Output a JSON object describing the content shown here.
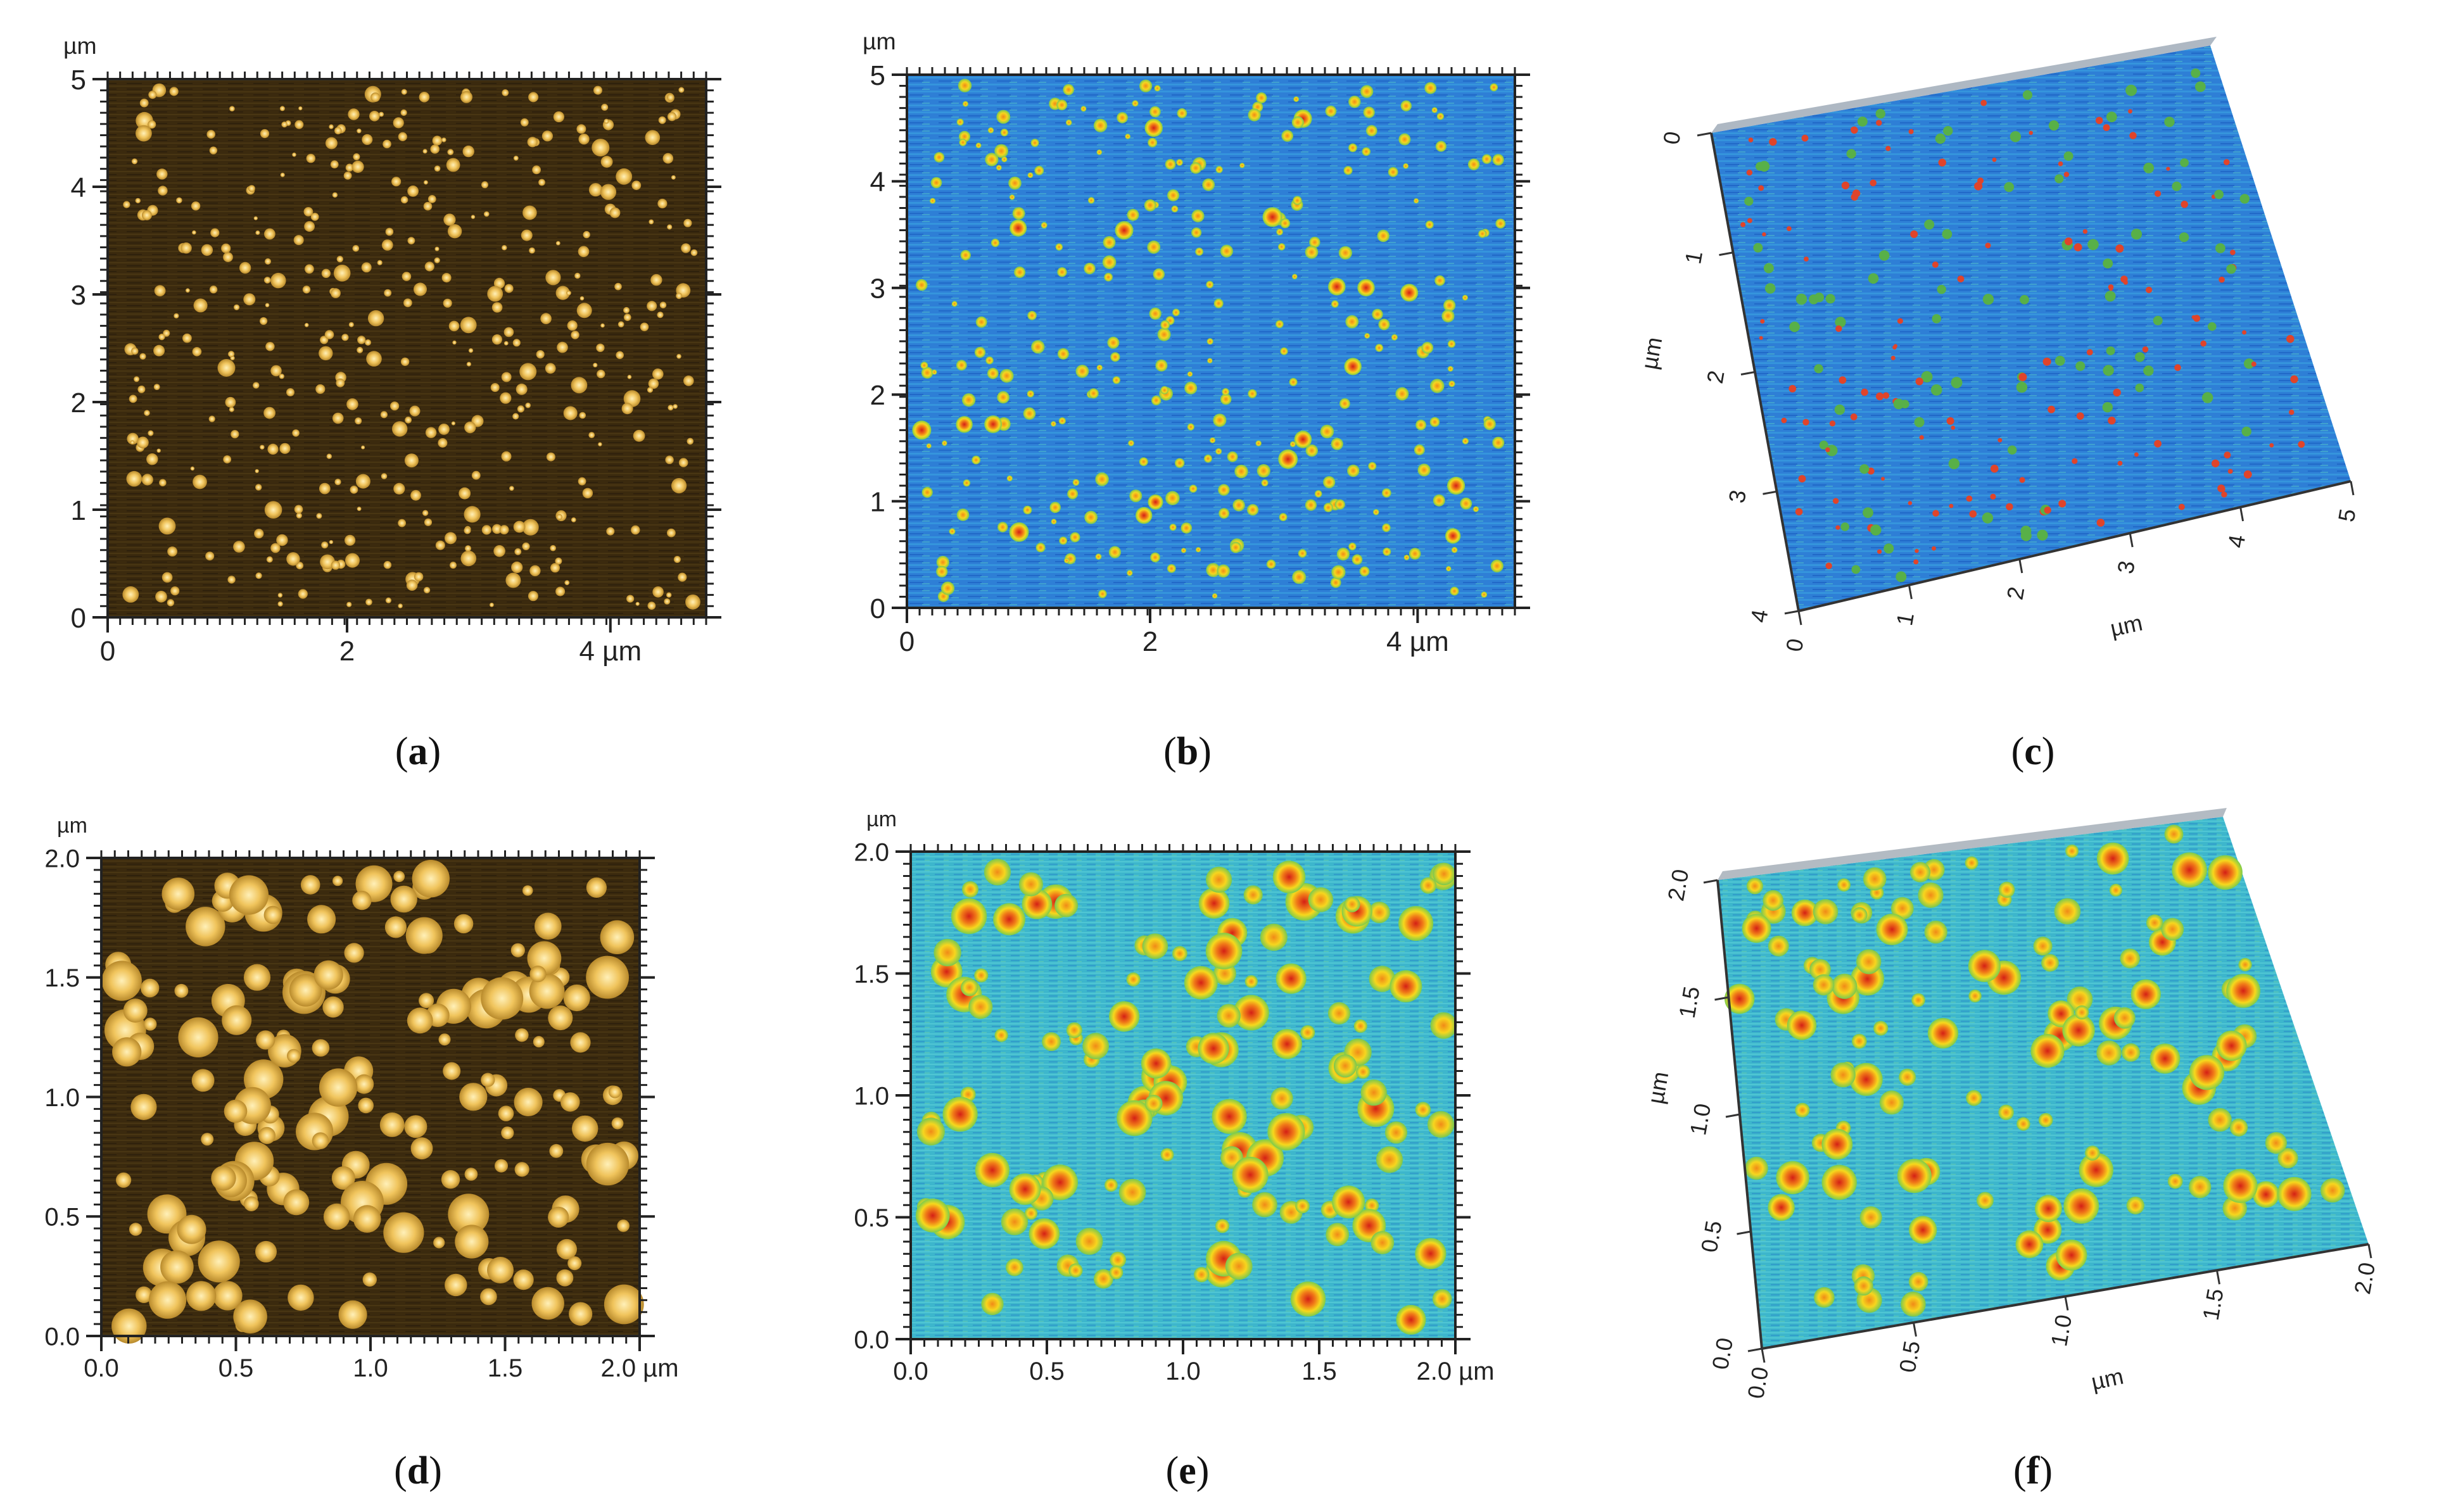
{
  "figure": {
    "panels": [
      {
        "id": "a",
        "caption_letter": "a",
        "view": "2D height image",
        "colormap": "gold",
        "unit": "µm",
        "x_ticks": [
          "0",
          "2",
          "4 µm"
        ],
        "y_ticks": [
          "0",
          "1",
          "2",
          "3",
          "4",
          "5"
        ]
      },
      {
        "id": "b",
        "caption_letter": "b",
        "view": "2D height image",
        "colormap": "rainbow",
        "unit": "µm",
        "x_ticks": [
          "0",
          "2",
          "4 µm"
        ],
        "y_ticks": [
          "0",
          "1",
          "2",
          "3",
          "4",
          "5"
        ]
      },
      {
        "id": "c",
        "caption_letter": "c",
        "view": "3D perspective",
        "colormap": "rainbow",
        "unit": "µm",
        "x_ticks": [
          "0",
          "1",
          "2",
          "3",
          "4",
          "5"
        ],
        "y_ticks": [
          "0",
          "1",
          "2",
          "3",
          "4"
        ],
        "y_unit_label": "µm",
        "x_unit_label": "µm"
      },
      {
        "id": "d",
        "caption_letter": "d",
        "view": "2D height image",
        "colormap": "gold",
        "unit": "µm",
        "x_ticks": [
          "0.0",
          "0.5",
          "1.0",
          "1.5",
          "2.0 µm"
        ],
        "y_ticks": [
          "0.0",
          "0.5",
          "1.0",
          "1.5",
          "2.0"
        ]
      },
      {
        "id": "e",
        "caption_letter": "e",
        "view": "2D height image",
        "colormap": "rainbow",
        "unit": "µm",
        "x_ticks": [
          "0.0",
          "0.5",
          "1.0",
          "1.5",
          "2.0 µm"
        ],
        "y_ticks": [
          "0.0",
          "0.5",
          "1.0",
          "1.5",
          "2.0"
        ]
      },
      {
        "id": "f",
        "caption_letter": "f",
        "view": "3D perspective",
        "colormap": "rainbow",
        "unit": "µm",
        "x_ticks": [
          "0.0",
          "0.5",
          "1.0",
          "1.5",
          "2.0"
        ],
        "y_ticks": [
          "0.0",
          "0.5",
          "1.0",
          "1.5",
          "2.0"
        ],
        "y_unit_label": "µm",
        "x_unit_label": "µm"
      }
    ]
  },
  "colors": {
    "gold_background": "#3a2a0c",
    "gold_particle": "#f2c766",
    "rainbow_background": "#2f86d8",
    "rainbow_particle": "#ffd21c",
    "rainbow_core": "#e8281c",
    "teal_background": "#3fb4c8"
  }
}
